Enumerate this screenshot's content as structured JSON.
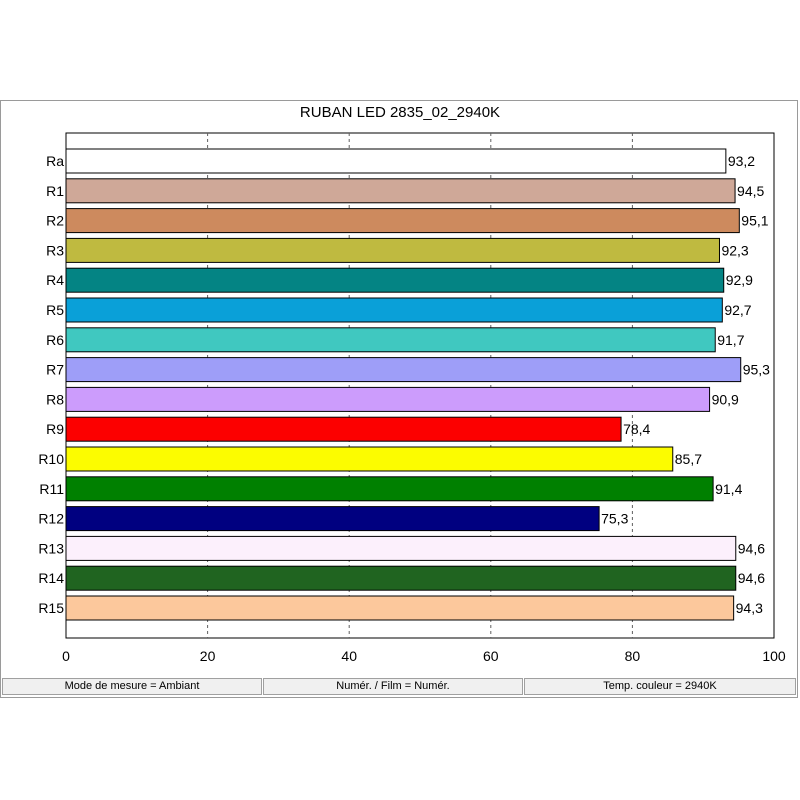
{
  "chart_data": {
    "type": "bar",
    "orientation": "horizontal",
    "title": "RUBAN LED 2835_02_2940K",
    "categories": [
      "Ra",
      "R1",
      "R2",
      "R3",
      "R4",
      "R5",
      "R6",
      "R7",
      "R8",
      "R9",
      "R10",
      "R11",
      "R12",
      "R13",
      "R14",
      "R15"
    ],
    "values": [
      93.2,
      94.5,
      95.1,
      92.3,
      92.9,
      92.7,
      91.7,
      95.3,
      90.9,
      78.4,
      85.7,
      91.4,
      75.3,
      94.6,
      94.6,
      94.3
    ],
    "value_labels": [
      "93,2",
      "94,5",
      "95,1",
      "92,3",
      "92,9",
      "92,7",
      "91,7",
      "95,3",
      "90,9",
      "78,4",
      "85,7",
      "91,4",
      "75,3",
      "94,6",
      "94,6",
      "94,3"
    ],
    "bar_colors": [
      "#ffffff",
      "#cfa898",
      "#cd8a5e",
      "#bfba40",
      "#048484",
      "#0aa0d8",
      "#40c8c0",
      "#9e9ef8",
      "#cc9cfc",
      "#fc0000",
      "#fcfc00",
      "#008000",
      "#000080",
      "#fcf0fc",
      "#206420",
      "#fcc89c"
    ],
    "xlim": [
      0,
      100
    ],
    "xticks": [
      0,
      20,
      40,
      60,
      80,
      100
    ],
    "xtick_labels": [
      "0",
      "20",
      "40",
      "60",
      "80",
      "100"
    ],
    "grid": true,
    "xlabel": "",
    "ylabel": ""
  },
  "statusbar": {
    "mode": "Mode de mesure = Ambiant",
    "film": "Numér. / Film = Numér.",
    "temp": "Temp. couleur = 2940K"
  }
}
